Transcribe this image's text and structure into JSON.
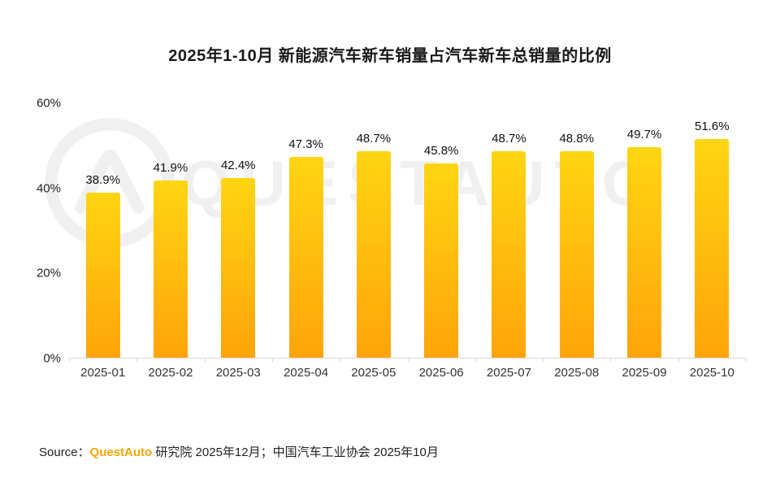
{
  "title": "2025年1-10月 新能源汽车新车销量占汽车新车总销量的比例",
  "watermark": "QUESTAUTO",
  "source": {
    "prefix": "Source：",
    "brand": "QuestAuto",
    "rest": " 研究院 2025年12月；中国汽车工业协会 2025年10月"
  },
  "colors": {
    "bar_top": "#FFD513",
    "bar_bottom": "#FFA40A",
    "brand_orange": "#F7A600",
    "watermark_gray": "#f0f0f0",
    "axis_line": "#d9d9d9"
  },
  "chart_data": {
    "type": "bar",
    "title": "2025年1-10月 新能源汽车新车销量占汽车新车总销量的比例",
    "categories": [
      "2025-01",
      "2025-02",
      "2025-03",
      "2025-04",
      "2025-05",
      "2025-06",
      "2025-07",
      "2025-08",
      "2025-09",
      "2025-10"
    ],
    "values": [
      38.9,
      41.9,
      42.4,
      47.3,
      48.7,
      45.8,
      48.7,
      48.8,
      49.7,
      51.6
    ],
    "value_labels": [
      "38.9%",
      "41.9%",
      "42.4%",
      "47.3%",
      "48.7%",
      "45.8%",
      "48.7%",
      "48.8%",
      "49.7%",
      "51.6%"
    ],
    "xlabel": "",
    "ylabel": "",
    "ylim": [
      0,
      60
    ],
    "yticks": [
      0,
      20,
      40,
      60
    ],
    "ytick_labels": [
      "0%",
      "20%",
      "40%",
      "60%"
    ],
    "grid": false,
    "legend": "none"
  }
}
